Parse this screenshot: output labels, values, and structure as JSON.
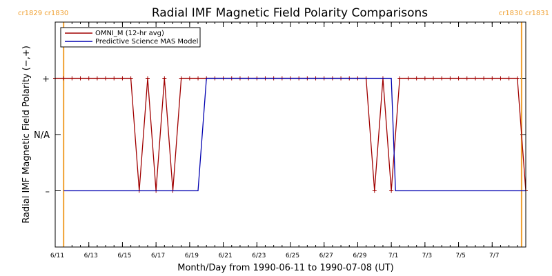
{
  "chart_data": {
    "type": "line",
    "title": "Radial IMF Magnetic Field Polarity Comparisons",
    "xlabel": "Month/Day from 1990-06-11 to 1990-07-08 (UT)",
    "ylabel": "Radial IMF Magnetic Field Polarity (−,+)",
    "x_start": "1990-06-11",
    "x_end": "1990-07-09",
    "x_ticks": [
      {
        "date": "1990-06-11",
        "label": "6/11"
      },
      {
        "date": "1990-06-13",
        "label": "6/13"
      },
      {
        "date": "1990-06-15",
        "label": "6/15"
      },
      {
        "date": "1990-06-17",
        "label": "6/17"
      },
      {
        "date": "1990-06-19",
        "label": "6/19"
      },
      {
        "date": "1990-06-21",
        "label": "6/21"
      },
      {
        "date": "1990-06-23",
        "label": "6/23"
      },
      {
        "date": "1990-06-25",
        "label": "6/25"
      },
      {
        "date": "1990-06-27",
        "label": "6/27"
      },
      {
        "date": "1990-06-29",
        "label": "6/29"
      },
      {
        "date": "1990-07-01",
        "label": "7/1"
      },
      {
        "date": "1990-07-03",
        "label": "7/3"
      },
      {
        "date": "1990-07-05",
        "label": "7/5"
      },
      {
        "date": "1990-07-07",
        "label": "7/7"
      }
    ],
    "y_ticks": [
      {
        "value": 1,
        "label": "+"
      },
      {
        "value": 0,
        "label": "N/A"
      },
      {
        "value": -1,
        "label": "–"
      }
    ],
    "ylim": [
      -2,
      2
    ],
    "carrington_markers": [
      {
        "date": "1990-06-11 12:00",
        "label": "cr1829 cr1830",
        "label_side": "left"
      },
      {
        "date": "1990-07-08 18:00",
        "label": "cr1830 cr1831",
        "label_side": "right"
      }
    ],
    "series": [
      {
        "name": "OMNI_M (12-hr avg)",
        "color": "#a00000",
        "markers": true,
        "points": [
          [
            "1990-06-11 00:00",
            1
          ],
          [
            "1990-06-11 12:00",
            1
          ],
          [
            "1990-06-12 00:00",
            1
          ],
          [
            "1990-06-12 12:00",
            1
          ],
          [
            "1990-06-13 00:00",
            1
          ],
          [
            "1990-06-13 12:00",
            1
          ],
          [
            "1990-06-14 00:00",
            1
          ],
          [
            "1990-06-14 12:00",
            1
          ],
          [
            "1990-06-15 00:00",
            1
          ],
          [
            "1990-06-15 12:00",
            1
          ],
          [
            "1990-06-16 00:00",
            -1
          ],
          [
            "1990-06-16 12:00",
            1
          ],
          [
            "1990-06-17 00:00",
            -1
          ],
          [
            "1990-06-17 12:00",
            1
          ],
          [
            "1990-06-18 00:00",
            -1
          ],
          [
            "1990-06-18 12:00",
            1
          ],
          [
            "1990-06-19 00:00",
            1
          ],
          [
            "1990-06-19 12:00",
            1
          ],
          [
            "1990-06-20 00:00",
            1
          ],
          [
            "1990-06-20 12:00",
            1
          ],
          [
            "1990-06-21 00:00",
            1
          ],
          [
            "1990-06-21 12:00",
            1
          ],
          [
            "1990-06-22 00:00",
            1
          ],
          [
            "1990-06-22 12:00",
            1
          ],
          [
            "1990-06-23 00:00",
            1
          ],
          [
            "1990-06-23 12:00",
            1
          ],
          [
            "1990-06-24 00:00",
            1
          ],
          [
            "1990-06-24 12:00",
            1
          ],
          [
            "1990-06-25 00:00",
            1
          ],
          [
            "1990-06-25 12:00",
            1
          ],
          [
            "1990-06-26 00:00",
            1
          ],
          [
            "1990-06-26 12:00",
            1
          ],
          [
            "1990-06-27 00:00",
            1
          ],
          [
            "1990-06-27 12:00",
            1
          ],
          [
            "1990-06-28 00:00",
            1
          ],
          [
            "1990-06-28 12:00",
            1
          ],
          [
            "1990-06-29 00:00",
            1
          ],
          [
            "1990-06-29 12:00",
            1
          ],
          [
            "1990-06-30 00:00",
            -1
          ],
          [
            "1990-06-30 12:00",
            1
          ],
          [
            "1990-07-01 00:00",
            -1
          ],
          [
            "1990-07-01 12:00",
            1
          ],
          [
            "1990-07-02 00:00",
            1
          ],
          [
            "1990-07-02 12:00",
            1
          ],
          [
            "1990-07-03 00:00",
            1
          ],
          [
            "1990-07-03 12:00",
            1
          ],
          [
            "1990-07-04 00:00",
            1
          ],
          [
            "1990-07-04 12:00",
            1
          ],
          [
            "1990-07-05 00:00",
            1
          ],
          [
            "1990-07-05 12:00",
            1
          ],
          [
            "1990-07-06 00:00",
            1
          ],
          [
            "1990-07-06 12:00",
            1
          ],
          [
            "1990-07-07 00:00",
            1
          ],
          [
            "1990-07-07 12:00",
            1
          ],
          [
            "1990-07-08 00:00",
            1
          ],
          [
            "1990-07-08 12:00",
            1
          ],
          [
            "1990-07-09 00:00",
            -1
          ]
        ]
      },
      {
        "name": "Predictive Science MAS Model",
        "color": "#0000b0",
        "markers": false,
        "points": [
          [
            "1990-06-11 12:00",
            -1
          ],
          [
            "1990-06-19 12:00",
            -1
          ],
          [
            "1990-06-20 00:00",
            1
          ],
          [
            "1990-07-01 00:00",
            1
          ],
          [
            "1990-07-01 06:00",
            -1
          ],
          [
            "1990-07-09 00:00",
            -1
          ]
        ]
      }
    ],
    "legend": {
      "position": "top-left"
    },
    "colors": {
      "carrington": "#f0a030",
      "axis": "#000000"
    }
  }
}
